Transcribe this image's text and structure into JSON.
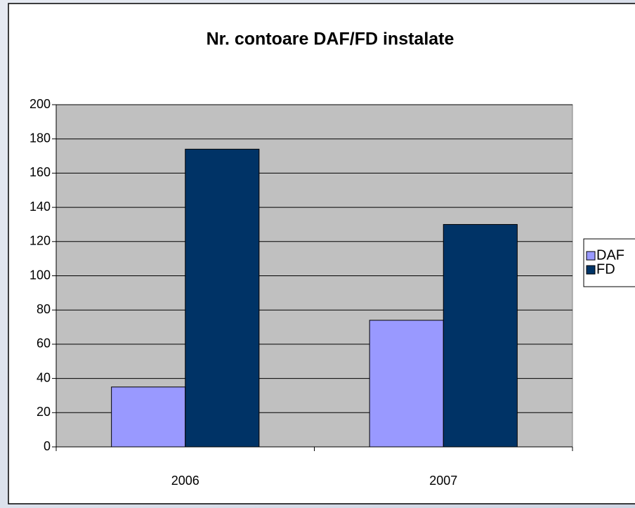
{
  "chart_data": {
    "type": "bar",
    "title": "Nr. contoare DAF/FD instalate",
    "categories": [
      "2006",
      "2007"
    ],
    "series": [
      {
        "name": "DAF",
        "color": "#9999ff",
        "values": [
          35,
          74
        ]
      },
      {
        "name": "FD",
        "color": "#003366",
        "values": [
          174,
          130
        ]
      }
    ],
    "ylim": [
      0,
      200
    ],
    "yticks": [
      0,
      20,
      40,
      60,
      80,
      100,
      120,
      140,
      160,
      180,
      200
    ],
    "grid": true,
    "legend": "right"
  }
}
